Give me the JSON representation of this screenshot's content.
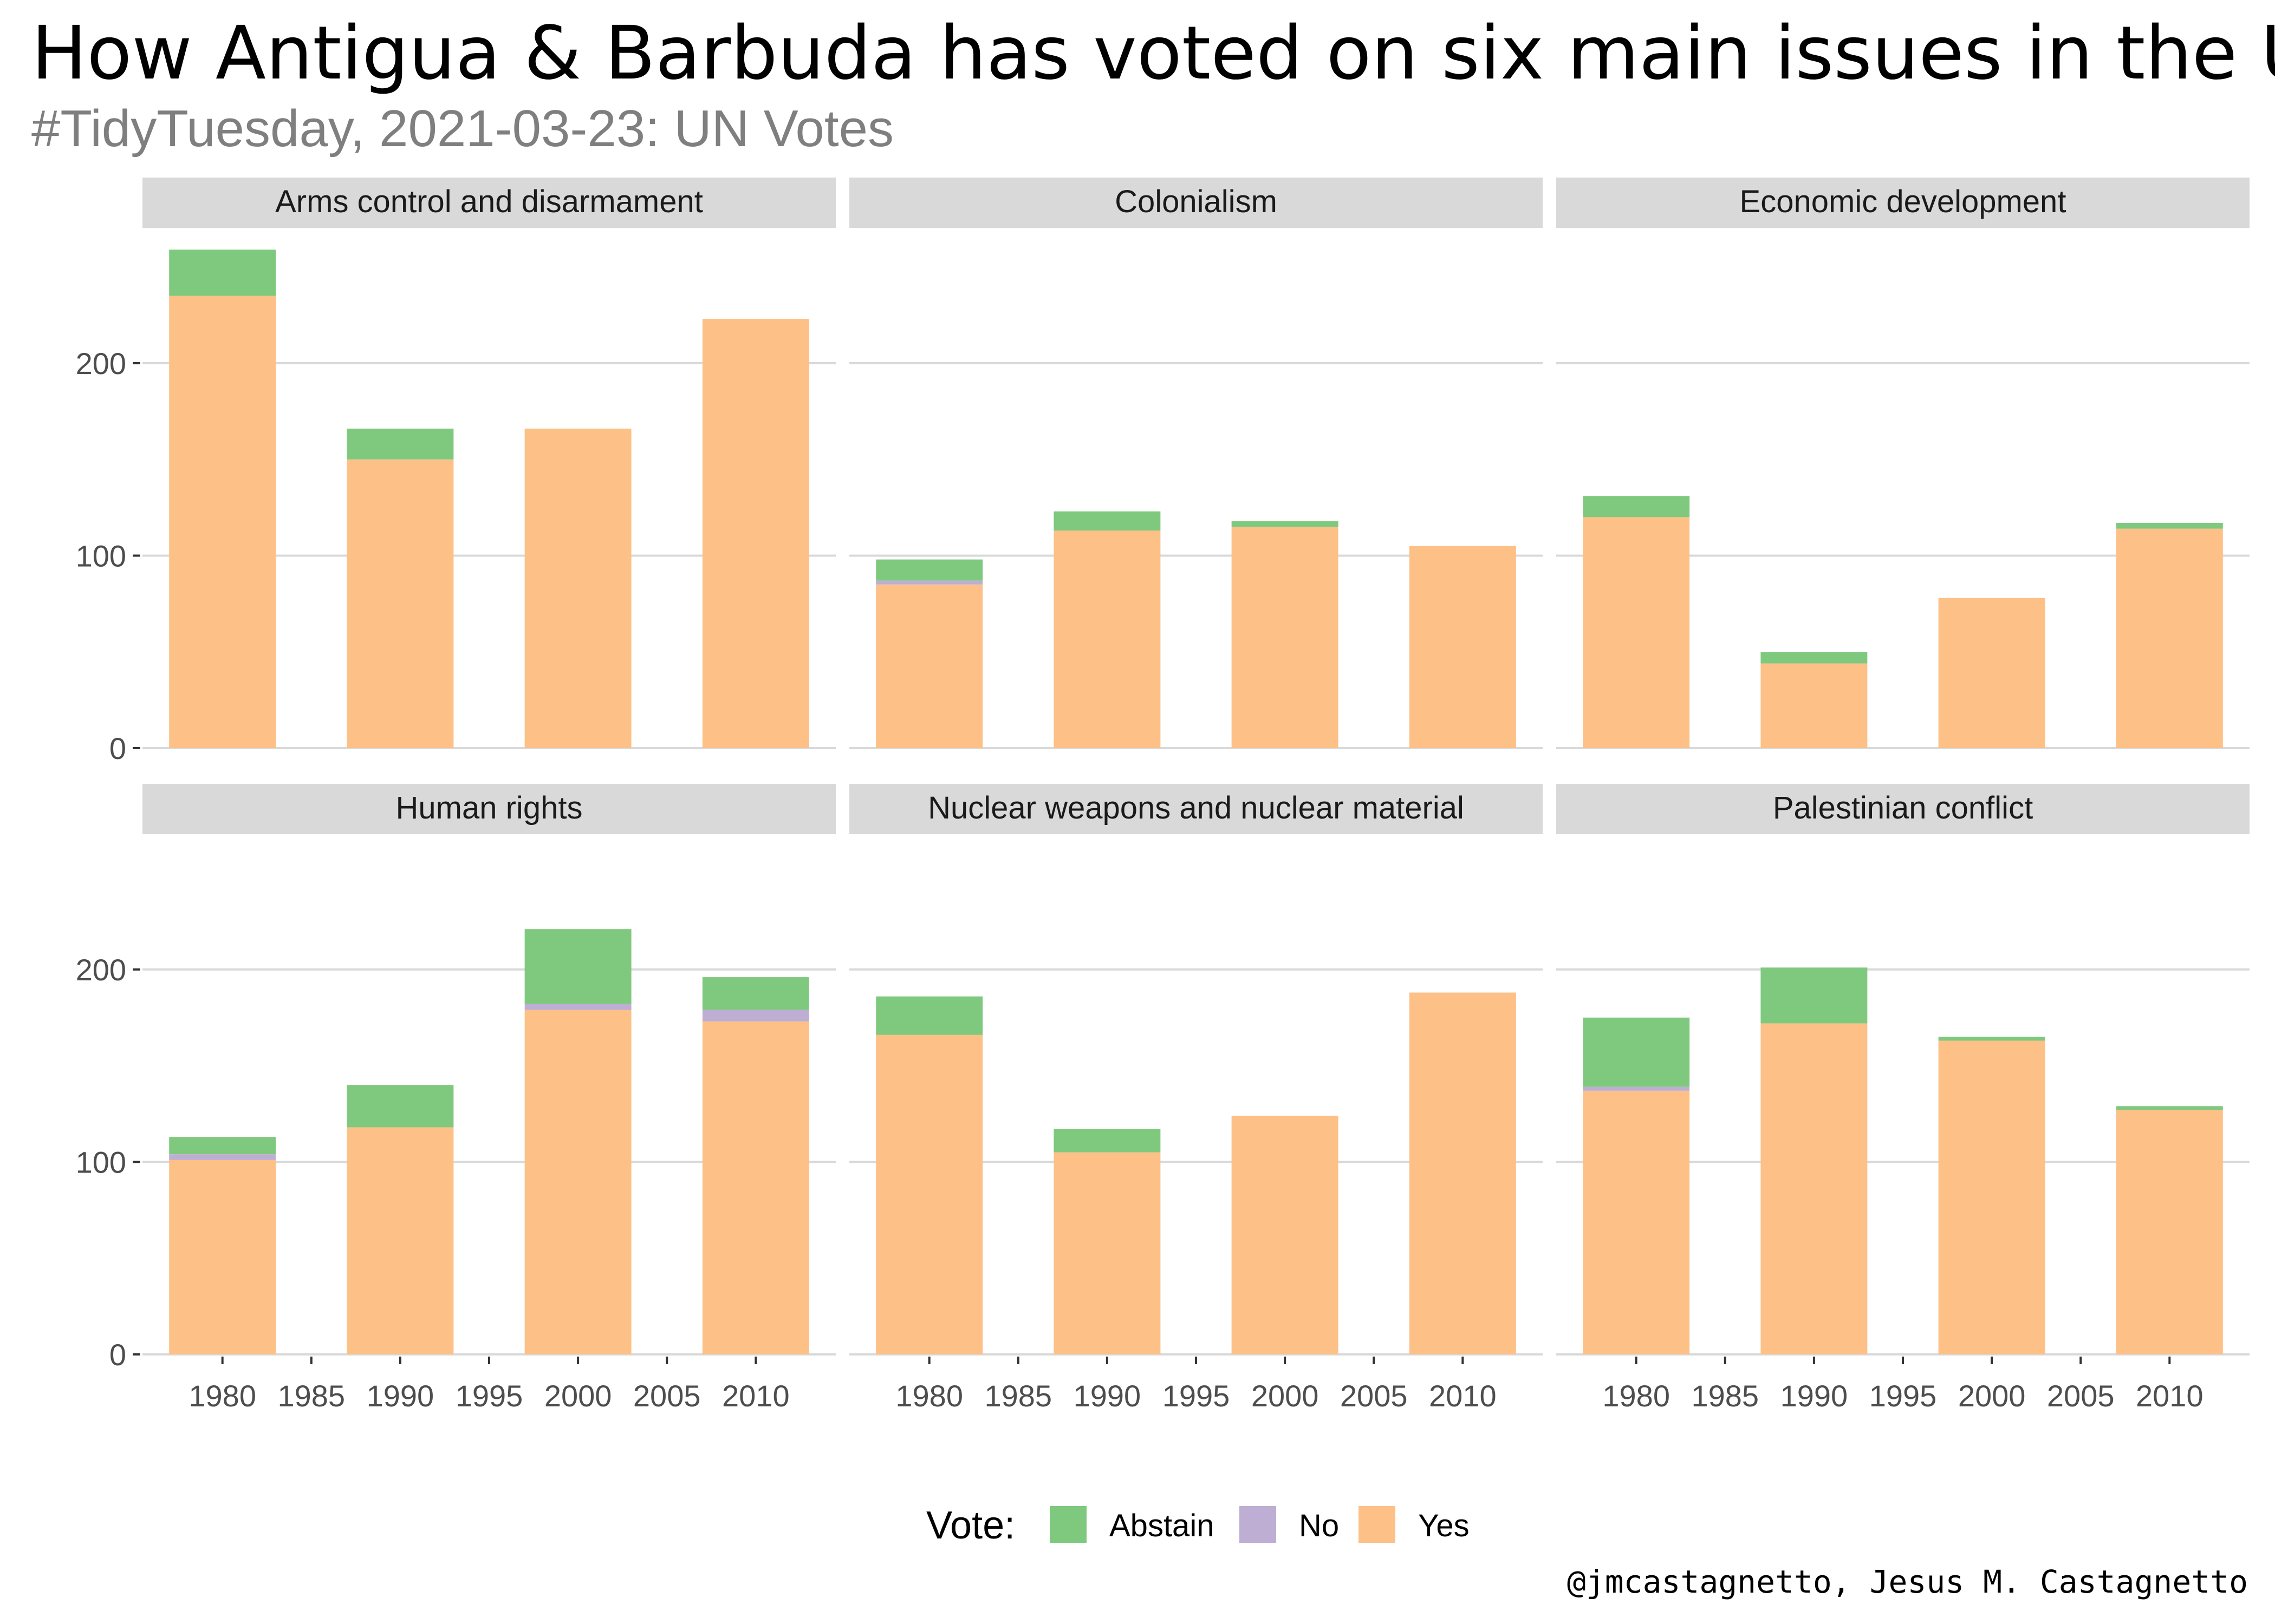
{
  "title": "How Antigua & Barbuda has voted on six main issues in the UN",
  "subtitle": "#TidyTuesday, 2021-03-23: UN Votes",
  "caption": "@jmcastagnetto, Jesus M. Castagnetto",
  "legend": {
    "title": "Vote:",
    "position": "bottom",
    "items": [
      {
        "label": "Abstain",
        "color": "#7FC97F"
      },
      {
        "label": "No",
        "color": "#BEAED4"
      },
      {
        "label": "Yes",
        "color": "#FDC086"
      }
    ]
  },
  "colors": {
    "strip_bg": "#D9D9D9",
    "grid": "#D9D9D9",
    "axis_text": "#4D4D4D",
    "subtitle": "#7F7F7F"
  },
  "chart_data": {
    "type": "bar",
    "stacked": true,
    "facets": [
      {
        "title": "Arms control and disarmament",
        "bars": [
          {
            "x": 1980,
            "Yes": 235,
            "No": 0,
            "Abstain": 24
          },
          {
            "x": 1990,
            "Yes": 150,
            "No": 0,
            "Abstain": 16
          },
          {
            "x": 2000,
            "Yes": 166,
            "No": 0,
            "Abstain": 0
          },
          {
            "x": 2010,
            "Yes": 223,
            "No": 0,
            "Abstain": 0
          }
        ]
      },
      {
        "title": "Colonialism",
        "bars": [
          {
            "x": 1980,
            "Yes": 85,
            "No": 2,
            "Abstain": 11
          },
          {
            "x": 1990,
            "Yes": 113,
            "No": 0,
            "Abstain": 10
          },
          {
            "x": 2000,
            "Yes": 115,
            "No": 0,
            "Abstain": 3
          },
          {
            "x": 2010,
            "Yes": 105,
            "No": 0,
            "Abstain": 0
          }
        ]
      },
      {
        "title": "Economic development",
        "bars": [
          {
            "x": 1980,
            "Yes": 120,
            "No": 0,
            "Abstain": 11
          },
          {
            "x": 1990,
            "Yes": 44,
            "No": 0,
            "Abstain": 6
          },
          {
            "x": 2000,
            "Yes": 78,
            "No": 0,
            "Abstain": 0
          },
          {
            "x": 2010,
            "Yes": 114,
            "No": 0,
            "Abstain": 3
          }
        ]
      },
      {
        "title": "Human rights",
        "bars": [
          {
            "x": 1980,
            "Yes": 101,
            "No": 3,
            "Abstain": 9
          },
          {
            "x": 1990,
            "Yes": 118,
            "No": 0,
            "Abstain": 22
          },
          {
            "x": 2000,
            "Yes": 179,
            "No": 3,
            "Abstain": 39
          },
          {
            "x": 2010,
            "Yes": 173,
            "No": 6,
            "Abstain": 17
          }
        ]
      },
      {
        "title": "Nuclear weapons and nuclear material",
        "bars": [
          {
            "x": 1980,
            "Yes": 166,
            "No": 0,
            "Abstain": 20
          },
          {
            "x": 1990,
            "Yes": 105,
            "No": 0,
            "Abstain": 12
          },
          {
            "x": 2000,
            "Yes": 124,
            "No": 0,
            "Abstain": 0
          },
          {
            "x": 2010,
            "Yes": 188,
            "No": 0,
            "Abstain": 0
          }
        ]
      },
      {
        "title": "Palestinian conflict",
        "bars": [
          {
            "x": 1980,
            "Yes": 137,
            "No": 2,
            "Abstain": 36
          },
          {
            "x": 1990,
            "Yes": 172,
            "No": 0,
            "Abstain": 29
          },
          {
            "x": 2000,
            "Yes": 163,
            "No": 0,
            "Abstain": 2
          },
          {
            "x": 2010,
            "Yes": 127,
            "No": 0,
            "Abstain": 2
          }
        ]
      }
    ],
    "x_ticks": [
      1980,
      1985,
      1990,
      1995,
      2000,
      2005,
      2010
    ],
    "y_ticks": [
      0,
      100,
      200
    ],
    "ylim": [
      0,
      270
    ],
    "xlim": [
      1975.5,
      2014.5
    ],
    "bar_width_years": 6,
    "grid": true,
    "xlabel": "",
    "ylabel": ""
  }
}
